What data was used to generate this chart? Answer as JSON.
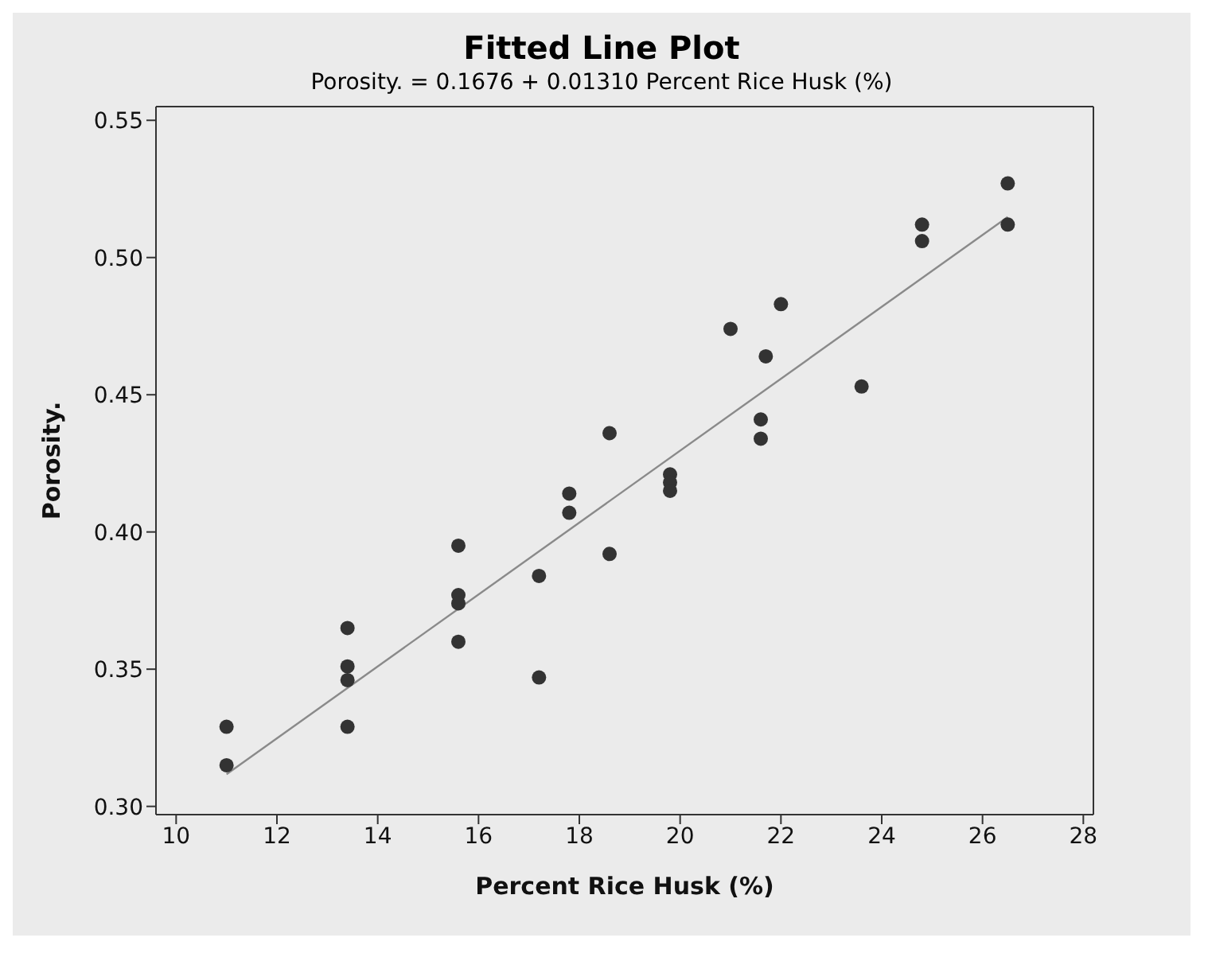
{
  "chart_data": {
    "type": "scatter",
    "title": "Fitted Line Plot",
    "subtitle": "Porosity. =  0.1676 + 0.01310 Percent Rice Husk (%)",
    "xlabel": "Percent Rice Husk (%)",
    "ylabel": "Porosity.",
    "xlim": [
      9.6,
      28.2
    ],
    "xticks": [
      10,
      12,
      14,
      16,
      18,
      20,
      22,
      24,
      26,
      28
    ],
    "ylim": [
      0.297,
      0.555
    ],
    "yticks": [
      {
        "value": 0.3,
        "label": "0.30"
      },
      {
        "value": 0.35,
        "label": "0.35"
      },
      {
        "value": 0.4,
        "label": "0.40"
      },
      {
        "value": 0.45,
        "label": "0.45"
      },
      {
        "value": 0.5,
        "label": "0.50"
      },
      {
        "value": 0.55,
        "label": "0.55"
      }
    ],
    "grid": false,
    "marker": "circle",
    "series": [
      {
        "type": "scatter",
        "color": "#333333",
        "x": [
          11,
          11,
          13.4,
          13.4,
          13.4,
          13.4,
          15.6,
          15.6,
          15.6,
          15.6,
          17.2,
          17.2,
          17.8,
          17.8,
          18.6,
          18.6,
          19.8,
          19.8,
          19.8,
          21.0,
          21.6,
          21.6,
          21.7,
          22.0,
          23.6,
          24.8,
          24.8,
          26.5,
          26.5
        ],
        "values": [
          0.329,
          0.315,
          0.365,
          0.351,
          0.346,
          0.329,
          0.395,
          0.377,
          0.374,
          0.36,
          0.384,
          0.347,
          0.414,
          0.407,
          0.436,
          0.392,
          0.421,
          0.418,
          0.415,
          0.474,
          0.441,
          0.434,
          0.464,
          0.483,
          0.453,
          0.512,
          0.506,
          0.527,
          0.512
        ]
      },
      {
        "type": "line",
        "color": "#8a8a8a",
        "marker": "none",
        "x": [
          11,
          26.5
        ],
        "values": [
          0.3117,
          0.5148
        ]
      }
    ]
  }
}
